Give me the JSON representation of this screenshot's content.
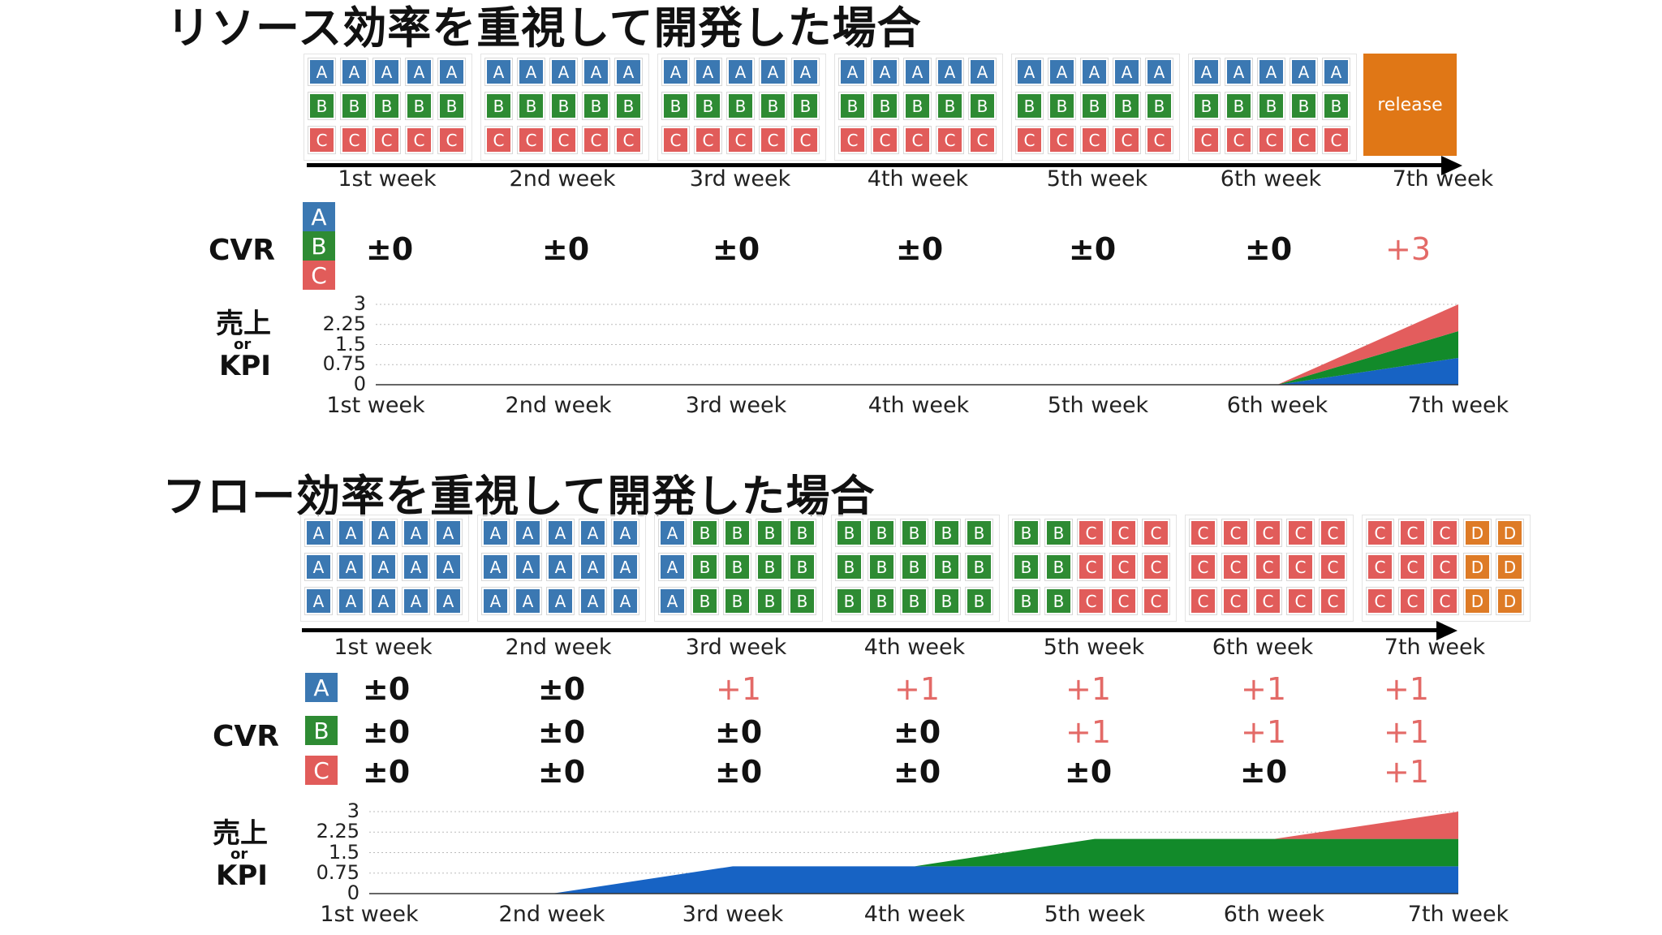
{
  "colors": {
    "A": "#3b78b2",
    "B": "#2e8b33",
    "C": "#e15c5a",
    "D": "#de7b26",
    "release": "#e07716",
    "positive": "#e36a67",
    "area_a": "#1763c4",
    "area_b": "#128a2a",
    "area_c": "#e35d5d"
  },
  "weeks": [
    "1st week",
    "2nd week",
    "3rd week",
    "4th week",
    "5th week",
    "6th week",
    "7th week"
  ],
  "resource": {
    "title": "リソース効率を重視して開発した場合",
    "week_tiles": [
      [
        [
          "A",
          "A",
          "A",
          "A",
          "A"
        ],
        [
          "B",
          "B",
          "B",
          "B",
          "B"
        ],
        [
          "C",
          "C",
          "C",
          "C",
          "C"
        ]
      ],
      [
        [
          "A",
          "A",
          "A",
          "A",
          "A"
        ],
        [
          "B",
          "B",
          "B",
          "B",
          "B"
        ],
        [
          "C",
          "C",
          "C",
          "C",
          "C"
        ]
      ],
      [
        [
          "A",
          "A",
          "A",
          "A",
          "A"
        ],
        [
          "B",
          "B",
          "B",
          "B",
          "B"
        ],
        [
          "C",
          "C",
          "C",
          "C",
          "C"
        ]
      ],
      [
        [
          "A",
          "A",
          "A",
          "A",
          "A"
        ],
        [
          "B",
          "B",
          "B",
          "B",
          "B"
        ],
        [
          "C",
          "C",
          "C",
          "C",
          "C"
        ]
      ],
      [
        [
          "A",
          "A",
          "A",
          "A",
          "A"
        ],
        [
          "B",
          "B",
          "B",
          "B",
          "B"
        ],
        [
          "C",
          "C",
          "C",
          "C",
          "C"
        ]
      ],
      [
        [
          "A",
          "A",
          "A",
          "A",
          "A"
        ],
        [
          "B",
          "B",
          "B",
          "B",
          "B"
        ],
        [
          "C",
          "C",
          "C",
          "C",
          "C"
        ]
      ]
    ],
    "release_label": "release",
    "cvr_label": "CVR",
    "cvr_badges": [
      "A",
      "B",
      "C"
    ],
    "cvr_values": [
      "±0",
      "±0",
      "±0",
      "±0",
      "±0",
      "±0",
      "+3"
    ],
    "kpi_label_top": "売上",
    "kpi_label_or": "or",
    "kpi_label_bottom": "KPI",
    "chart_data": {
      "type": "area",
      "title": "",
      "xlabel": "",
      "ylabel": "売上 or KPI",
      "ylim": [
        0,
        3
      ],
      "yticks": [
        "3",
        "2.25",
        "1.5",
        "0.75",
        "0"
      ],
      "categories": [
        "1st week",
        "2nd week",
        "3rd week",
        "4th week",
        "5th week",
        "6th week",
        "7th week"
      ],
      "series": [
        {
          "name": "A",
          "values": [
            0,
            0,
            0,
            0,
            0,
            0,
            1
          ]
        },
        {
          "name": "B",
          "values": [
            0,
            0,
            0,
            0,
            0,
            0,
            1
          ]
        },
        {
          "name": "C",
          "values": [
            0,
            0,
            0,
            0,
            0,
            0,
            1
          ]
        }
      ],
      "stacked": true,
      "grid": true
    }
  },
  "flow": {
    "title": "フロー効率を重視して開発した場合",
    "week_tiles": [
      [
        [
          "A",
          "A",
          "A",
          "A",
          "A"
        ],
        [
          "A",
          "A",
          "A",
          "A",
          "A"
        ],
        [
          "A",
          "A",
          "A",
          "A",
          "A"
        ]
      ],
      [
        [
          "A",
          "A",
          "A",
          "A",
          "A"
        ],
        [
          "A",
          "A",
          "A",
          "A",
          "A"
        ],
        [
          "A",
          "A",
          "A",
          "A",
          "A"
        ]
      ],
      [
        [
          "A",
          "B",
          "B",
          "B",
          "B"
        ],
        [
          "A",
          "B",
          "B",
          "B",
          "B"
        ],
        [
          "A",
          "B",
          "B",
          "B",
          "B"
        ]
      ],
      [
        [
          "B",
          "B",
          "B",
          "B",
          "B"
        ],
        [
          "B",
          "B",
          "B",
          "B",
          "B"
        ],
        [
          "B",
          "B",
          "B",
          "B",
          "B"
        ]
      ],
      [
        [
          "B",
          "B",
          "C",
          "C",
          "C"
        ],
        [
          "B",
          "B",
          "C",
          "C",
          "C"
        ],
        [
          "B",
          "B",
          "C",
          "C",
          "C"
        ]
      ],
      [
        [
          "C",
          "C",
          "C",
          "C",
          "C"
        ],
        [
          "C",
          "C",
          "C",
          "C",
          "C"
        ],
        [
          "C",
          "C",
          "C",
          "C",
          "C"
        ]
      ],
      [
        [
          "C",
          "C",
          "C",
          "D",
          "D"
        ],
        [
          "C",
          "C",
          "C",
          "D",
          "D"
        ],
        [
          "C",
          "C",
          "C",
          "D",
          "D"
        ]
      ]
    ],
    "cvr_label": "CVR",
    "cvr_rows": [
      {
        "badge": "A",
        "values": [
          "±0",
          "±0",
          "+1",
          "+1",
          "+1",
          "+1",
          "+1"
        ]
      },
      {
        "badge": "B",
        "values": [
          "±0",
          "±0",
          "±0",
          "±0",
          "+1",
          "+1",
          "+1"
        ]
      },
      {
        "badge": "C",
        "values": [
          "±0",
          "±0",
          "±0",
          "±0",
          "±0",
          "±0",
          "+1"
        ]
      }
    ],
    "kpi_label_top": "売上",
    "kpi_label_or": "or",
    "kpi_label_bottom": "KPI",
    "chart_data": {
      "type": "area",
      "title": "",
      "xlabel": "",
      "ylabel": "売上 or KPI",
      "ylim": [
        0,
        3
      ],
      "yticks": [
        "3",
        "2.25",
        "1.5",
        "0.75",
        "0"
      ],
      "categories": [
        "1st week",
        "2nd week",
        "3rd week",
        "4th week",
        "5th week",
        "6th week",
        "7th week"
      ],
      "series": [
        {
          "name": "A",
          "values": [
            0,
            0,
            1,
            1,
            1,
            1,
            1
          ]
        },
        {
          "name": "B",
          "values": [
            0,
            0,
            0,
            0,
            1,
            1,
            1
          ]
        },
        {
          "name": "C",
          "values": [
            0,
            0,
            0,
            0,
            0,
            0,
            1
          ]
        }
      ],
      "stacked": true,
      "grid": true
    }
  }
}
